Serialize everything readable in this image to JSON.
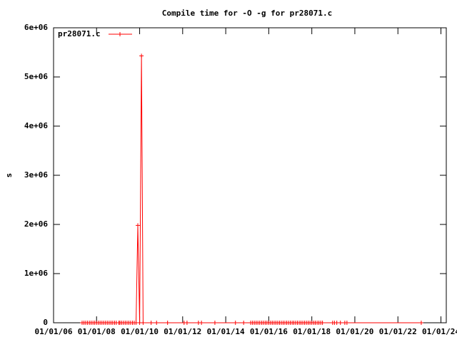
{
  "chart_data": {
    "type": "line",
    "title": "Compile time for -O -g for pr28071.c",
    "ylabel": "s",
    "legend": "top-left",
    "x": [
      "2007-05-01",
      "2007-06-01",
      "2007-07-01",
      "2007-08-01",
      "2007-09-01",
      "2007-10-01",
      "2007-11-01",
      "2007-12-01",
      "2008-01-01",
      "2008-02-01",
      "2008-03-01",
      "2008-04-01",
      "2008-05-01",
      "2008-06-01",
      "2008-07-01",
      "2008-08-01",
      "2008-09-01",
      "2008-10-01",
      "2008-11-01",
      "2008-12-01",
      "2009-01-15",
      "2009-02-01",
      "2009-03-01",
      "2009-04-01",
      "2009-05-01",
      "2009-06-01",
      "2009-07-01",
      "2009-08-01",
      "2009-09-01",
      "2009-10-01",
      "2009-11-01",
      "2009-12-01",
      "2010-01-01",
      "2010-02-01",
      "2010-03-01",
      "2010-07-15",
      "2010-10-15",
      "2011-04-20",
      "2012-01-25",
      "2012-03-15",
      "2012-09-25",
      "2012-11-15",
      "2013-07-01",
      "2014-06-15",
      "2014-11-01",
      "2015-03-01",
      "2015-04-01",
      "2015-05-01",
      "2015-06-01",
      "2015-07-01",
      "2015-08-01",
      "2015-09-01",
      "2015-10-01",
      "2015-11-01",
      "2015-12-01",
      "2016-01-01",
      "2016-02-01",
      "2016-03-01",
      "2016-04-01",
      "2016-05-01",
      "2016-06-01",
      "2016-07-01",
      "2016-08-01",
      "2016-09-01",
      "2016-10-01",
      "2016-11-01",
      "2016-12-01",
      "2017-01-01",
      "2017-02-01",
      "2017-03-01",
      "2017-04-01",
      "2017-05-01",
      "2017-06-01",
      "2017-07-01",
      "2017-08-01",
      "2017-09-01",
      "2017-10-01",
      "2017-11-01",
      "2017-12-01",
      "2018-01-01",
      "2018-02-01",
      "2018-03-01",
      "2018-04-01",
      "2018-05-01",
      "2018-06-01",
      "2018-07-01",
      "2018-12-20",
      "2019-01-20",
      "2019-03-01",
      "2019-05-01",
      "2019-07-15",
      "2019-08-20",
      "2023-02-01"
    ],
    "series": [
      {
        "name": "pr28071.c",
        "color": "#ff0000",
        "values": [
          0,
          0,
          0,
          0,
          0,
          0,
          0,
          0,
          0,
          0,
          0,
          0,
          0,
          0,
          0,
          0,
          0,
          0,
          0,
          0,
          0,
          0,
          0,
          0,
          0,
          0,
          0,
          0,
          0,
          0,
          0,
          1980000,
          0,
          5430000,
          0,
          0,
          0,
          0,
          0,
          0,
          0,
          0,
          0,
          0,
          0,
          0,
          0,
          0,
          0,
          0,
          0,
          0,
          0,
          0,
          0,
          0,
          0,
          0,
          0,
          0,
          0,
          0,
          0,
          0,
          0,
          0,
          0,
          0,
          0,
          0,
          0,
          0,
          0,
          0,
          0,
          0,
          0,
          0,
          0,
          0,
          0,
          0,
          0,
          0,
          0,
          0,
          0,
          0,
          0,
          0,
          0,
          0,
          0
        ]
      }
    ],
    "xlim": [
      "2006-01-01",
      "2024-04-01"
    ],
    "xticks": [
      {
        "value": "2006-01-01",
        "label": "01/01/06"
      },
      {
        "value": "2008-01-01",
        "label": "01/01/08"
      },
      {
        "value": "2010-01-01",
        "label": "01/01/10"
      },
      {
        "value": "2012-01-01",
        "label": "01/01/12"
      },
      {
        "value": "2014-01-01",
        "label": "01/01/14"
      },
      {
        "value": "2016-01-01",
        "label": "01/01/16"
      },
      {
        "value": "2018-01-01",
        "label": "01/01/18"
      },
      {
        "value": "2020-01-01",
        "label": "01/01/20"
      },
      {
        "value": "2022-01-01",
        "label": "01/01/22"
      },
      {
        "value": "2024-01-01",
        "label": "01/01/24"
      }
    ],
    "ylim": [
      0,
      6000000
    ],
    "yticks": [
      0,
      {
        "value": 1000000,
        "label": "1e+06"
      },
      {
        "value": 2000000,
        "label": "2e+06"
      },
      {
        "value": 3000000,
        "label": "3e+06"
      },
      {
        "value": 4000000,
        "label": "4e+06"
      },
      {
        "value": 5000000,
        "label": "5e+06"
      },
      {
        "value": 6000000,
        "label": "6e+06"
      }
    ]
  }
}
